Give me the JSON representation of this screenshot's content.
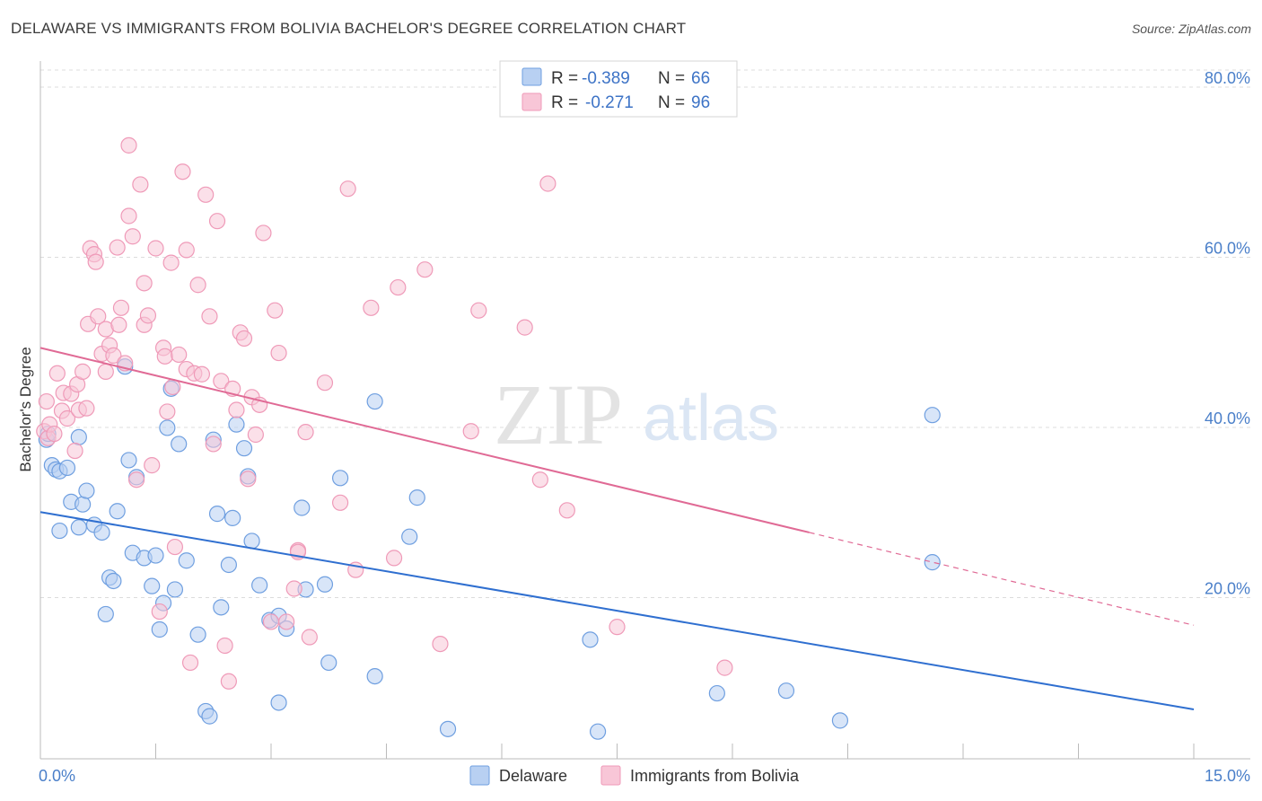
{
  "chart_data": {
    "type": "scatter",
    "title": "DELAWARE VS IMMIGRANTS FROM BOLIVIA BACHELOR'S DEGREE CORRELATION CHART",
    "source": "Source: ZipAtlas.com",
    "ylabel": "Bachelor's Degree",
    "xlabel": "",
    "xlim": [
      0,
      15
    ],
    "ylim": [
      0,
      80
    ],
    "x_tick_labels": [
      "0.0%",
      "15.0%"
    ],
    "y_ticks": [
      20,
      40,
      60,
      80
    ],
    "y_tick_labels": [
      "20.0%",
      "40.0%",
      "60.0%",
      "80.0%"
    ],
    "grid": true,
    "legend_position": "top-center",
    "watermark": {
      "zip": "ZIP",
      "atlas": "atlas"
    },
    "legend": [
      {
        "r_label": "R =",
        "r_value": "-0.389",
        "n_label": "N =",
        "n_value": "66"
      },
      {
        "r_label": "R =",
        "r_value": "-0.271",
        "n_label": "N =",
        "n_value": "96"
      }
    ],
    "series": [
      {
        "name": "Delaware",
        "color": "#6f9fe0",
        "fill": "#b8d0f2",
        "line_color": "#2f6fd0",
        "trend": {
          "x0": 0,
          "y0": 29.0,
          "x1": 15,
          "y1": 5.8
        },
        "points": [
          [
            0.08,
            37.5
          ],
          [
            0.1,
            38.2
          ],
          [
            0.15,
            34.5
          ],
          [
            0.2,
            34.0
          ],
          [
            0.25,
            26.8
          ],
          [
            0.25,
            33.8
          ],
          [
            0.35,
            34.2
          ],
          [
            0.4,
            30.2
          ],
          [
            0.5,
            27.2
          ],
          [
            0.55,
            29.9
          ],
          [
            0.5,
            37.8
          ],
          [
            0.6,
            31.5
          ],
          [
            0.7,
            27.5
          ],
          [
            0.8,
            26.6
          ],
          [
            0.85,
            17.0
          ],
          [
            0.9,
            21.3
          ],
          [
            0.95,
            20.9
          ],
          [
            1.0,
            29.1
          ],
          [
            1.1,
            46.1
          ],
          [
            1.15,
            35.1
          ],
          [
            1.2,
            24.2
          ],
          [
            1.25,
            33.1
          ],
          [
            1.35,
            23.6
          ],
          [
            1.45,
            20.3
          ],
          [
            1.5,
            23.9
          ],
          [
            1.55,
            15.2
          ],
          [
            1.6,
            18.3
          ],
          [
            1.65,
            38.9
          ],
          [
            1.7,
            43.5
          ],
          [
            1.75,
            19.9
          ],
          [
            1.8,
            37.0
          ],
          [
            1.9,
            23.3
          ],
          [
            2.05,
            14.6
          ],
          [
            2.15,
            5.6
          ],
          [
            2.2,
            5.0
          ],
          [
            2.25,
            37.5
          ],
          [
            2.3,
            28.8
          ],
          [
            2.35,
            17.8
          ],
          [
            2.45,
            22.8
          ],
          [
            2.5,
            28.3
          ],
          [
            2.55,
            39.3
          ],
          [
            2.65,
            36.5
          ],
          [
            2.7,
            33.2
          ],
          [
            2.75,
            25.6
          ],
          [
            2.85,
            20.4
          ],
          [
            2.98,
            16.3
          ],
          [
            3.1,
            6.6
          ],
          [
            3.1,
            16.8
          ],
          [
            3.2,
            15.3
          ],
          [
            3.4,
            29.5
          ],
          [
            3.45,
            19.9
          ],
          [
            3.7,
            20.5
          ],
          [
            3.75,
            11.3
          ],
          [
            3.9,
            33.0
          ],
          [
            4.35,
            42.0
          ],
          [
            4.35,
            9.7
          ],
          [
            4.8,
            26.1
          ],
          [
            4.9,
            30.7
          ],
          [
            5.3,
            3.5
          ],
          [
            7.15,
            14.0
          ],
          [
            7.25,
            3.2
          ],
          [
            8.8,
            7.7
          ],
          [
            9.7,
            8.0
          ],
          [
            10.4,
            4.5
          ],
          [
            11.6,
            23.1
          ],
          [
            11.6,
            40.4
          ]
        ]
      },
      {
        "name": "Immigrants from Bolivia",
        "color": "#ef9ab8",
        "fill": "#f8c6d7",
        "line_color": "#e06a95",
        "trend": {
          "x0": 0,
          "y0": 48.3,
          "x1": 10.0,
          "y1": 26.6,
          "dash_x1": 15,
          "dash_y1": 15.7
        },
        "points": [
          [
            0.05,
            38.5
          ],
          [
            0.08,
            42.0
          ],
          [
            0.1,
            37.7
          ],
          [
            0.12,
            39.3
          ],
          [
            0.18,
            38.2
          ],
          [
            0.22,
            45.3
          ],
          [
            0.28,
            40.9
          ],
          [
            0.3,
            43.0
          ],
          [
            0.35,
            40.0
          ],
          [
            0.4,
            42.9
          ],
          [
            0.45,
            36.2
          ],
          [
            0.48,
            44.0
          ],
          [
            0.5,
            41.0
          ],
          [
            0.55,
            45.5
          ],
          [
            0.6,
            41.2
          ],
          [
            0.62,
            51.1
          ],
          [
            0.65,
            60.0
          ],
          [
            0.7,
            59.3
          ],
          [
            0.72,
            58.4
          ],
          [
            0.75,
            52.0
          ],
          [
            0.8,
            47.6
          ],
          [
            0.85,
            45.5
          ],
          [
            0.85,
            50.5
          ],
          [
            0.9,
            48.6
          ],
          [
            0.95,
            47.4
          ],
          [
            1.0,
            60.1
          ],
          [
            1.02,
            51.0
          ],
          [
            1.05,
            53.0
          ],
          [
            1.1,
            46.5
          ],
          [
            1.15,
            72.1
          ],
          [
            1.15,
            63.8
          ],
          [
            1.2,
            61.4
          ],
          [
            1.25,
            32.8
          ],
          [
            1.3,
            67.5
          ],
          [
            1.35,
            55.9
          ],
          [
            1.35,
            51.0
          ],
          [
            1.4,
            52.1
          ],
          [
            1.45,
            34.5
          ],
          [
            1.5,
            60.0
          ],
          [
            1.55,
            17.3
          ],
          [
            1.6,
            48.3
          ],
          [
            1.62,
            47.3
          ],
          [
            1.65,
            40.8
          ],
          [
            1.7,
            58.3
          ],
          [
            1.72,
            43.7
          ],
          [
            1.75,
            24.9
          ],
          [
            1.8,
            47.5
          ],
          [
            1.85,
            69.0
          ],
          [
            1.9,
            59.8
          ],
          [
            1.9,
            45.8
          ],
          [
            1.95,
            11.3
          ],
          [
            2.0,
            45.3
          ],
          [
            2.05,
            55.7
          ],
          [
            2.1,
            45.2
          ],
          [
            2.15,
            66.3
          ],
          [
            2.2,
            52.0
          ],
          [
            2.25,
            37.0
          ],
          [
            2.3,
            63.2
          ],
          [
            2.35,
            44.4
          ],
          [
            2.4,
            13.3
          ],
          [
            2.45,
            9.1
          ],
          [
            2.5,
            43.5
          ],
          [
            2.55,
            41.0
          ],
          [
            2.6,
            50.1
          ],
          [
            2.65,
            49.4
          ],
          [
            2.7,
            32.9
          ],
          [
            2.75,
            42.5
          ],
          [
            2.8,
            38.1
          ],
          [
            2.85,
            41.6
          ],
          [
            2.9,
            61.8
          ],
          [
            3.0,
            16.1
          ],
          [
            3.05,
            52.7
          ],
          [
            3.1,
            47.7
          ],
          [
            3.2,
            16.1
          ],
          [
            3.3,
            20.0
          ],
          [
            3.35,
            24.5
          ],
          [
            3.45,
            38.4
          ],
          [
            3.5,
            14.3
          ],
          [
            3.7,
            44.2
          ],
          [
            3.9,
            30.1
          ],
          [
            4.0,
            67.0
          ],
          [
            4.1,
            22.2
          ],
          [
            4.3,
            53.0
          ],
          [
            4.6,
            23.6
          ],
          [
            4.65,
            55.4
          ],
          [
            5.0,
            57.5
          ],
          [
            5.2,
            13.5
          ],
          [
            5.6,
            38.5
          ],
          [
            5.7,
            52.7
          ],
          [
            6.3,
            50.7
          ],
          [
            6.5,
            32.8
          ],
          [
            6.6,
            67.6
          ],
          [
            6.85,
            29.2
          ],
          [
            7.5,
            15.5
          ],
          [
            8.9,
            10.7
          ],
          [
            3.35,
            24.3
          ]
        ]
      }
    ]
  }
}
